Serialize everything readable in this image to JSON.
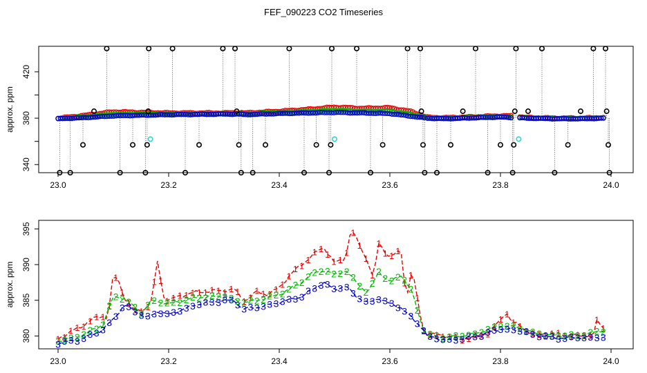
{
  "title": "FEF_090223  CO2 Timeseries",
  "colors": {
    "ch1": "#e60000",
    "ch2": "#00bb00",
    "ch3": "#0000cc",
    "black": "#000000",
    "cyan": "#30d0d0",
    "dotted_line": "#777777"
  },
  "chart_data": [
    {
      "type": "scatter",
      "title": "FEF_090223  CO2 Timeseries",
      "xlabel": "",
      "ylabel": "approx. ppm",
      "xlim": [
        22.965,
        24.04
      ],
      "ylim": [
        333,
        442
      ],
      "x_ticks": [
        23.0,
        23.2,
        23.4,
        23.6,
        23.8,
        24.0
      ],
      "x_tick_labels": [
        "23.0",
        "23.2",
        "23.4",
        "23.6",
        "23.8",
        "24.0"
      ],
      "y_ticks": [
        340,
        380,
        420
      ],
      "y_tick_labels": [
        "340",
        "380",
        "420"
      ],
      "y_minor_ticks": [
        360,
        400
      ],
      "grid": false,
      "gap_x": [
        23.333,
        23.667
      ],
      "baseline_anchors": [
        [
          23.0,
          379.5
        ],
        [
          23.05,
          380.5
        ],
        [
          23.1,
          382
        ],
        [
          23.2,
          383
        ],
        [
          23.3,
          383.5
        ],
        [
          23.333,
          383.5
        ],
        [
          23.334,
          383
        ],
        [
          23.4,
          384
        ],
        [
          23.5,
          385
        ],
        [
          23.6,
          384
        ],
        [
          23.65,
          381
        ],
        [
          23.667,
          380
        ],
        [
          23.7,
          379.5
        ],
        [
          23.8,
          381
        ],
        [
          23.82,
          380.5
        ],
        [
          23.85,
          380
        ],
        [
          23.9,
          379.5
        ],
        [
          23.95,
          379.5
        ],
        [
          23.99,
          380
        ]
      ],
      "red_bump_anchors": [
        [
          23.0,
          0.5
        ],
        [
          23.1,
          3.5
        ],
        [
          23.2,
          1.5
        ],
        [
          23.3,
          1
        ],
        [
          23.4,
          2
        ],
        [
          23.45,
          3
        ],
        [
          23.5,
          4.5
        ],
        [
          23.55,
          4
        ],
        [
          23.6,
          5
        ],
        [
          23.64,
          4
        ],
        [
          23.667,
          0.8
        ],
        [
          23.8,
          1
        ],
        [
          23.82,
          1.5
        ],
        [
          23.85,
          0.5
        ],
        [
          23.99,
          0.6
        ]
      ],
      "outliers": [
        {
          "x": 23.003,
          "y": 333
        },
        {
          "x": 23.022,
          "y": 333
        },
        {
          "x": 23.045,
          "y": 357
        },
        {
          "x": 23.065,
          "y": 386
        },
        {
          "x": 23.088,
          "y": 440
        },
        {
          "x": 23.112,
          "y": 333
        },
        {
          "x": 23.135,
          "y": 357
        },
        {
          "x": 23.158,
          "y": 333
        },
        {
          "x": 23.161,
          "y": 357
        },
        {
          "x": 23.163,
          "y": 386
        },
        {
          "x": 23.164,
          "y": 440
        },
        {
          "x": 23.207,
          "y": 440
        },
        {
          "x": 23.23,
          "y": 333
        },
        {
          "x": 23.255,
          "y": 357
        },
        {
          "x": 23.298,
          "y": 440
        },
        {
          "x": 23.32,
          "y": 440
        },
        {
          "x": 23.323,
          "y": 386
        },
        {
          "x": 23.327,
          "y": 357
        },
        {
          "x": 23.331,
          "y": 333
        },
        {
          "x": 23.352,
          "y": 333
        },
        {
          "x": 23.375,
          "y": 357
        },
        {
          "x": 23.418,
          "y": 440
        },
        {
          "x": 23.445,
          "y": 333
        },
        {
          "x": 23.467,
          "y": 357
        },
        {
          "x": 23.49,
          "y": 333
        },
        {
          "x": 23.493,
          "y": 357
        },
        {
          "x": 23.495,
          "y": 440
        },
        {
          "x": 23.54,
          "y": 440
        },
        {
          "x": 23.565,
          "y": 333
        },
        {
          "x": 23.587,
          "y": 357
        },
        {
          "x": 23.632,
          "y": 440
        },
        {
          "x": 23.655,
          "y": 440
        },
        {
          "x": 23.657,
          "y": 386
        },
        {
          "x": 23.66,
          "y": 357
        },
        {
          "x": 23.663,
          "y": 333
        },
        {
          "x": 23.685,
          "y": 333
        },
        {
          "x": 23.71,
          "y": 357
        },
        {
          "x": 23.732,
          "y": 386
        },
        {
          "x": 23.755,
          "y": 440
        },
        {
          "x": 23.777,
          "y": 333
        },
        {
          "x": 23.8,
          "y": 357
        },
        {
          "x": 23.822,
          "y": 333
        },
        {
          "x": 23.824,
          "y": 357
        },
        {
          "x": 23.826,
          "y": 386
        },
        {
          "x": 23.828,
          "y": 440
        },
        {
          "x": 23.85,
          "y": 386
        },
        {
          "x": 23.875,
          "y": 440
        },
        {
          "x": 23.898,
          "y": 333
        },
        {
          "x": 23.922,
          "y": 357
        },
        {
          "x": 23.945,
          "y": 386
        },
        {
          "x": 23.968,
          "y": 440
        },
        {
          "x": 23.99,
          "y": 440
        },
        {
          "x": 23.992,
          "y": 386
        },
        {
          "x": 23.995,
          "y": 357
        },
        {
          "x": 23.997,
          "y": 333
        }
      ],
      "cyan_points": [
        {
          "x": 23.167,
          "y": 362
        },
        {
          "x": 23.5,
          "y": 362
        },
        {
          "x": 23.833,
          "y": 362
        }
      ]
    },
    {
      "type": "line",
      "title": "",
      "xlabel": "",
      "ylabel": "approx. ppm",
      "xlim": [
        22.965,
        24.04
      ],
      "ylim": [
        378.2,
        396.2
      ],
      "x_ticks": [
        23.0,
        23.2,
        23.4,
        23.6,
        23.8,
        24.0
      ],
      "x_tick_labels": [
        "23.0",
        "23.2",
        "23.4",
        "23.6",
        "23.8",
        "24.0"
      ],
      "y_ticks": [
        380,
        385,
        390,
        395
      ],
      "y_tick_labels": [
        "380",
        "385",
        "390",
        "395"
      ],
      "grid": false,
      "point_labels": [
        "1",
        "2",
        "3"
      ],
      "series": [
        {
          "name": "1",
          "anchors": [
            [
              23.0,
              379.6
            ],
            [
              23.02,
              380.5
            ],
            [
              23.04,
              381.2
            ],
            [
              23.06,
              382.3
            ],
            [
              23.08,
              382.8
            ],
            [
              23.09,
              382.5
            ],
            [
              23.1,
              388.7
            ],
            [
              23.11,
              387.5
            ],
            [
              23.12,
              385.4
            ],
            [
              23.14,
              383.4
            ],
            [
              23.16,
              383.9
            ],
            [
              23.17,
              385.2
            ],
            [
              23.18,
              390.6
            ],
            [
              23.19,
              385.6
            ],
            [
              23.2,
              385
            ],
            [
              23.22,
              385.6
            ],
            [
              23.24,
              386
            ],
            [
              23.26,
              386.2
            ],
            [
              23.28,
              386.3
            ],
            [
              23.3,
              386.4
            ],
            [
              23.32,
              386.5
            ],
            [
              23.333,
              385.2
            ],
            [
              23.34,
              385
            ],
            [
              23.36,
              386.2
            ],
            [
              23.38,
              385.8
            ],
            [
              23.4,
              386.8
            ],
            [
              23.42,
              388.6
            ],
            [
              23.44,
              390
            ],
            [
              23.46,
              391.3
            ],
            [
              23.48,
              392.5
            ],
            [
              23.5,
              390.2
            ],
            [
              23.52,
              391
            ],
            [
              23.53,
              395
            ],
            [
              23.54,
              393.5
            ],
            [
              23.56,
              390.5
            ],
            [
              23.57,
              388
            ],
            [
              23.58,
              393
            ],
            [
              23.6,
              391
            ],
            [
              23.62,
              392
            ],
            [
              23.63,
              385.2
            ],
            [
              23.64,
              389.5
            ],
            [
              23.65,
              385
            ],
            [
              23.66,
              381
            ],
            [
              23.667,
              380.3
            ],
            [
              23.7,
              380
            ],
            [
              23.73,
              379.6
            ],
            [
              23.76,
              380
            ],
            [
              23.78,
              380.6
            ],
            [
              23.8,
              382.2
            ],
            [
              23.81,
              383.5
            ],
            [
              23.82,
              382
            ],
            [
              23.833,
              381.5
            ],
            [
              23.86,
              380.2
            ],
            [
              23.9,
              380.3
            ],
            [
              23.94,
              380
            ],
            [
              23.97,
              380.2
            ],
            [
              23.975,
              382.5
            ],
            [
              23.98,
              381.5
            ],
            [
              23.99,
              381
            ]
          ]
        },
        {
          "name": "2",
          "anchors": [
            [
              23.0,
              379.3
            ],
            [
              23.04,
              380
            ],
            [
              23.08,
              381.5
            ],
            [
              23.1,
              385.5
            ],
            [
              23.12,
              385.3
            ],
            [
              23.15,
              383.2
            ],
            [
              23.17,
              385
            ],
            [
              23.2,
              384.5
            ],
            [
              23.25,
              385.4
            ],
            [
              23.3,
              385.6
            ],
            [
              23.333,
              384.7
            ],
            [
              23.36,
              385
            ],
            [
              23.4,
              385.8
            ],
            [
              23.44,
              387.5
            ],
            [
              23.46,
              388.8
            ],
            [
              23.48,
              389.2
            ],
            [
              23.5,
              388.6
            ],
            [
              23.52,
              389.2
            ],
            [
              23.54,
              387.5
            ],
            [
              23.56,
              386
            ],
            [
              23.58,
              389
            ],
            [
              23.6,
              387.5
            ],
            [
              23.62,
              388.6
            ],
            [
              23.64,
              386.2
            ],
            [
              23.66,
              381
            ],
            [
              23.667,
              380.2
            ],
            [
              23.7,
              379.8
            ],
            [
              23.75,
              380.2
            ],
            [
              23.8,
              381.5
            ],
            [
              23.833,
              381.2
            ],
            [
              23.86,
              380.4
            ],
            [
              23.9,
              380
            ],
            [
              23.95,
              380.2
            ],
            [
              23.99,
              380.8
            ]
          ]
        },
        {
          "name": "3",
          "anchors": [
            [
              23.0,
              379
            ],
            [
              23.04,
              379.5
            ],
            [
              23.08,
              380.8
            ],
            [
              23.1,
              382.4
            ],
            [
              23.12,
              384.3
            ],
            [
              23.14,
              383.5
            ],
            [
              23.16,
              382.5
            ],
            [
              23.18,
              383.4
            ],
            [
              23.2,
              383
            ],
            [
              23.25,
              384.4
            ],
            [
              23.3,
              385
            ],
            [
              23.32,
              384.9
            ],
            [
              23.333,
              383.8
            ],
            [
              23.36,
              384
            ],
            [
              23.4,
              384.7
            ],
            [
              23.44,
              385.5
            ],
            [
              23.46,
              386.5
            ],
            [
              23.48,
              387.5
            ],
            [
              23.5,
              386.5
            ],
            [
              23.52,
              387
            ],
            [
              23.54,
              385.5
            ],
            [
              23.56,
              384.6
            ],
            [
              23.58,
              385.3
            ],
            [
              23.6,
              384.5
            ],
            [
              23.62,
              384
            ],
            [
              23.64,
              382.5
            ],
            [
              23.66,
              381
            ],
            [
              23.667,
              380
            ],
            [
              23.7,
              379.4
            ],
            [
              23.73,
              379.6
            ],
            [
              23.76,
              380
            ],
            [
              23.8,
              381
            ],
            [
              23.833,
              380.8
            ],
            [
              23.86,
              380.2
            ],
            [
              23.9,
              379.7
            ],
            [
              23.95,
              379.8
            ],
            [
              23.99,
              379.8
            ]
          ]
        }
      ]
    }
  ]
}
